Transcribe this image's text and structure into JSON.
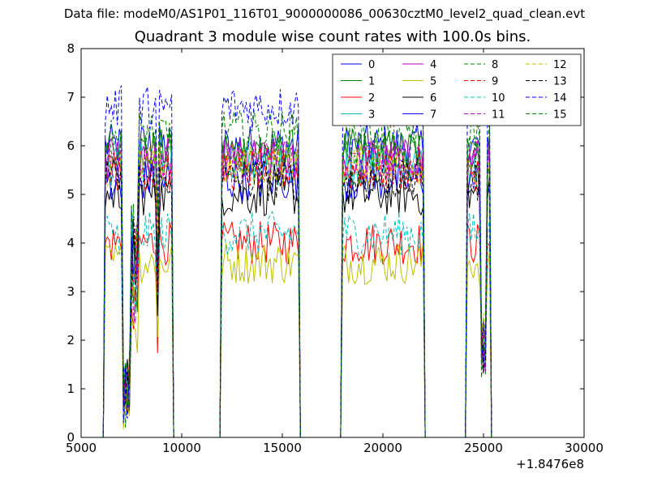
{
  "header": {
    "suptitle": "Data file: modeM0/AS1P01_116T01_9000000086_00630cztM0_level2_quad_clean.evt"
  },
  "chart_data": {
    "type": "line",
    "title": "Quadrant 3 module wise count rates with 100.0s bins.",
    "xlabel": "",
    "ylabel": "",
    "x_offset_label": "+1.8476e8",
    "xlim": [
      5000,
      30000
    ],
    "ylim": [
      0,
      8
    ],
    "x_ticks": [
      "5000",
      "10000",
      "15000",
      "20000",
      "25000",
      "30000"
    ],
    "y_ticks": [
      "0",
      "1",
      "2",
      "3",
      "4",
      "5",
      "6",
      "7",
      "8"
    ],
    "grid": false,
    "legend_position": "top-right",
    "legend_columns": 4,
    "segments": [
      {
        "x_start": 6200,
        "x_end": 9500
      },
      {
        "x_start": 12000,
        "x_end": 15800
      },
      {
        "x_start": 18000,
        "x_end": 22000
      },
      {
        "x_start": 24200,
        "x_end": 25300
      }
    ],
    "series": [
      {
        "name": "0",
        "color": "#0000ff",
        "dash": "solid",
        "level": 6.0
      },
      {
        "name": "1",
        "color": "#008000",
        "dash": "solid",
        "level": 5.9
      },
      {
        "name": "2",
        "color": "#ff0000",
        "dash": "solid",
        "level": 4.0
      },
      {
        "name": "3",
        "color": "#00bfbf",
        "dash": "solid",
        "level": 5.6
      },
      {
        "name": "4",
        "color": "#bf00bf",
        "dash": "solid",
        "level": 5.7
      },
      {
        "name": "5",
        "color": "#bfbf00",
        "dash": "solid",
        "level": 3.6
      },
      {
        "name": "6",
        "color": "#000000",
        "dash": "solid",
        "level": 5.0
      },
      {
        "name": "7",
        "color": "#0000ff",
        "dash": "solid",
        "level": 5.3
      },
      {
        "name": "8",
        "color": "#008000",
        "dash": "dashed",
        "level": 5.8
      },
      {
        "name": "9",
        "color": "#ff0000",
        "dash": "dashed",
        "level": 5.5
      },
      {
        "name": "10",
        "color": "#00bfbf",
        "dash": "dashed",
        "level": 4.2
      },
      {
        "name": "11",
        "color": "#bf00bf",
        "dash": "dashed",
        "level": 5.7
      },
      {
        "name": "12",
        "color": "#bfbf00",
        "dash": "dashed",
        "level": 5.6
      },
      {
        "name": "13",
        "color": "#000000",
        "dash": "dashed",
        "level": 5.3
      },
      {
        "name": "14",
        "color": "#0000ff",
        "dash": "dashed",
        "level": 6.8
      },
      {
        "name": "15",
        "color": "#008000",
        "dash": "dashed",
        "level": 6.3
      }
    ]
  }
}
